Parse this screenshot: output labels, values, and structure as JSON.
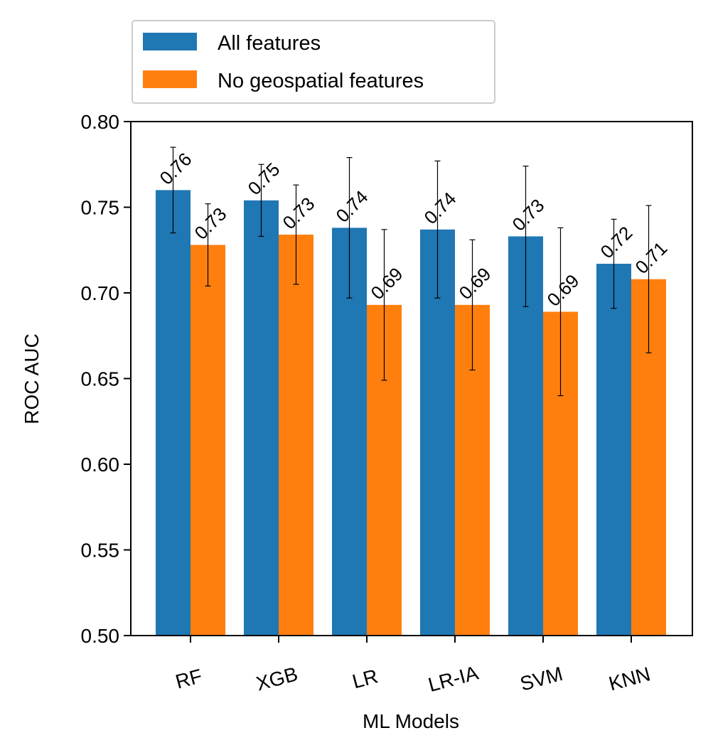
{
  "chart_data": {
    "type": "bar",
    "title": "",
    "xlabel": "ML Models",
    "ylabel": "ROC AUC",
    "ylim": [
      0.5,
      0.8
    ],
    "yticks": [
      "0.50",
      "0.55",
      "0.60",
      "0.65",
      "0.70",
      "0.75",
      "0.80"
    ],
    "categories": [
      "RF",
      "XGB",
      "LR",
      "LR-IA",
      "SVM",
      "KNN"
    ],
    "series": [
      {
        "name": "All features",
        "color": "#1f77b4",
        "values": [
          0.76,
          0.754,
          0.738,
          0.737,
          0.733,
          0.717
        ],
        "errors": [
          0.025,
          0.021,
          0.041,
          0.04,
          0.041,
          0.026
        ],
        "labels": [
          "0.76",
          "0.75",
          "0.74",
          "0.74",
          "0.73",
          "0.72"
        ]
      },
      {
        "name": "No geospatial features",
        "color": "#ff7f0e",
        "values": [
          0.728,
          0.734,
          0.693,
          0.693,
          0.689,
          0.708
        ],
        "errors": [
          0.024,
          0.029,
          0.044,
          0.038,
          0.049,
          0.043
        ],
        "labels": [
          "0.73",
          "0.73",
          "0.69",
          "0.69",
          "0.69",
          "0.71"
        ]
      }
    ],
    "legend_position": "top-left, outside plot",
    "grid": false
  }
}
